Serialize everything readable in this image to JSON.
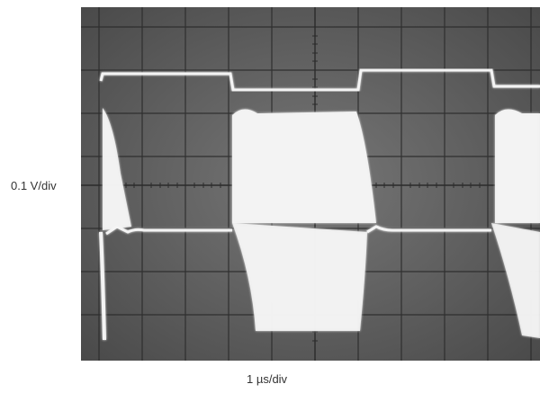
{
  "labels": {
    "vertical_scale": "0.1 V/div",
    "horizontal_scale": "1 µs/div"
  },
  "colors": {
    "screen": "#6a6a6a",
    "trace": "#f4f4f4",
    "graticule": "#2b2b2b"
  }
}
